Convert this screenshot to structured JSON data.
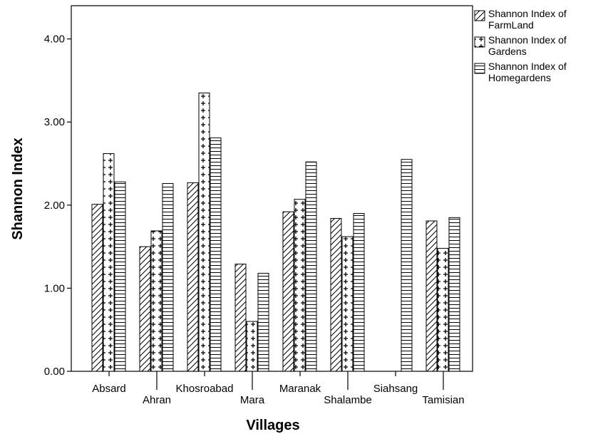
{
  "chart_data": {
    "type": "bar",
    "xlabel": "Villages",
    "ylabel": "Shannon Index",
    "ylim": [
      0,
      4.4
    ],
    "yticks": [
      "0.00",
      "1.00",
      "2.00",
      "3.00",
      "4.00"
    ],
    "grid": false,
    "legend_position": "top-right, outside plot",
    "categories": [
      "Absard",
      "Ahran",
      "Khosroabad",
      "Mara",
      "Maranak",
      "Shalambe",
      "Siahsang",
      "Tamisian"
    ],
    "series": [
      {
        "name": "Shannon Index of FarmLand",
        "legend_lines": [
          "Shannon Index of",
          "FarmLand"
        ],
        "pattern": "diagonal-hatch",
        "values": [
          2.01,
          1.5,
          2.27,
          1.29,
          1.92,
          1.84,
          null,
          1.81
        ]
      },
      {
        "name": "Shannon Index of Gardens",
        "legend_lines": [
          "Shannon Index of",
          "Gardens"
        ],
        "pattern": "plus-cross",
        "values": [
          2.62,
          1.69,
          3.35,
          0.6,
          2.07,
          1.62,
          null,
          1.48
        ]
      },
      {
        "name": "Shannon Index of Homegardens",
        "legend_lines": [
          "Shannon Index of",
          "Homegardens"
        ],
        "pattern": "horizontal-lines",
        "values": [
          2.28,
          2.26,
          2.81,
          1.18,
          2.52,
          1.9,
          2.55,
          1.85
        ]
      }
    ]
  }
}
